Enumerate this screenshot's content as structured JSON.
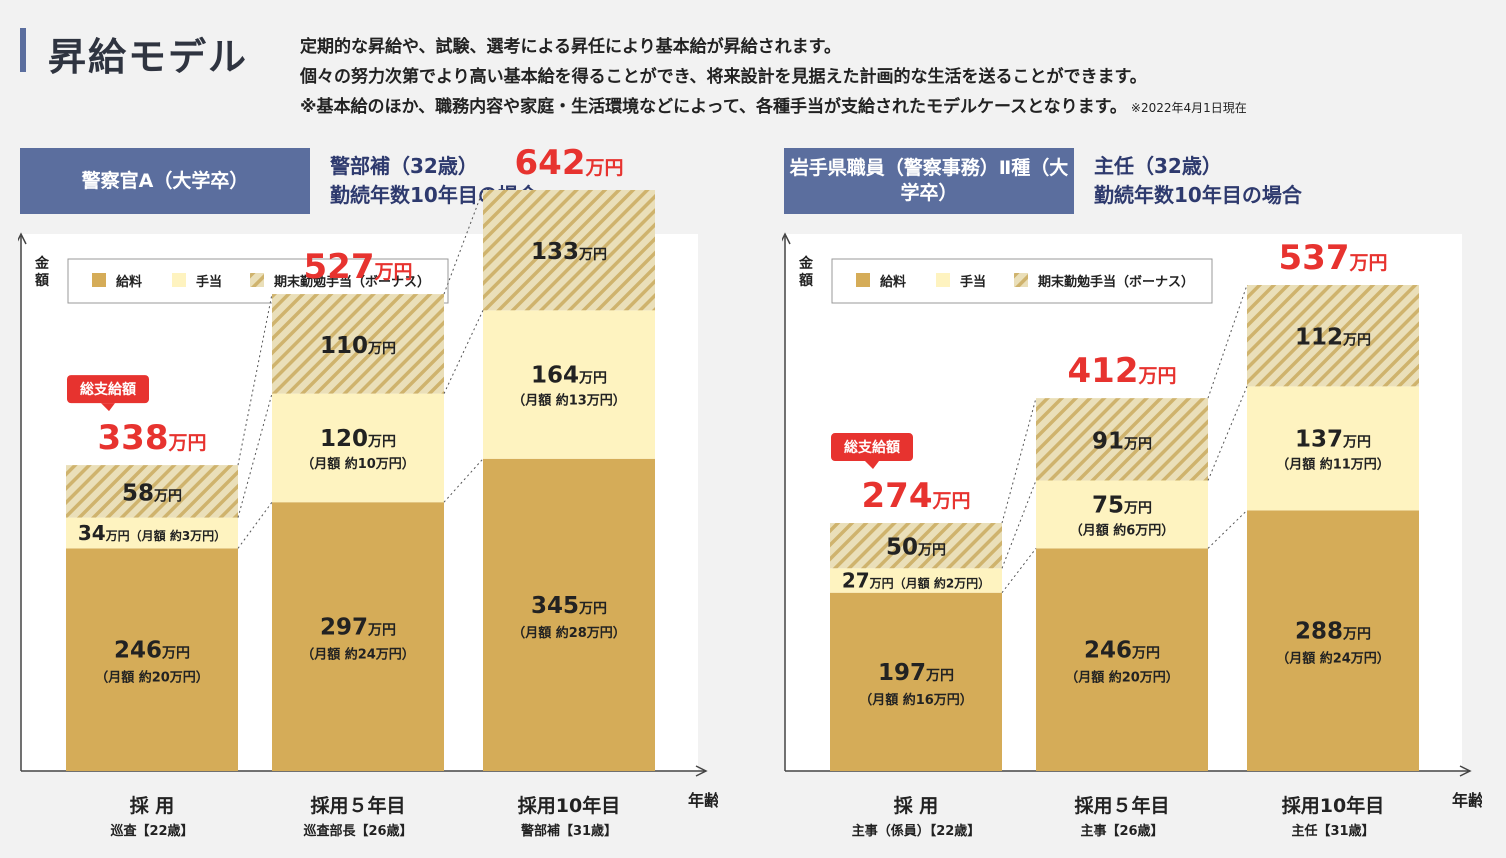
{
  "header": {
    "title": "昇給モデル",
    "intro_lines": [
      "定期的な昇給や、試験、選考による昇任により基本給が昇給されます。",
      "個々の努力次第でより高い基本給を得ることができ、将来設計を見据えた計画的な生活を送ることができます。",
      "※基本給のほか、職務内容や家庭・生活環境などによって、各種手当が支給されたモデルケースとなります。"
    ],
    "date_note": "※2022年4月1日現在"
  },
  "colors": {
    "salary": "#d5ac58",
    "allowance": "#fef3c0",
    "bonus_base": "#eadfb9",
    "bonus_stripe": "#cfb36d",
    "total": "#e7332f",
    "label_bg": "#5b6e9e",
    "subhead": "#2e3a6e"
  },
  "chart_data": [
    {
      "type": "bar",
      "stacked": true,
      "label": "警察官A（大学卒）",
      "subtitle": [
        "警部補（32歳）",
        "勤続年数10年目の場合"
      ],
      "ylabel": "金額",
      "xlabel": "年齢",
      "unit": "万円",
      "legend": [
        "給料",
        "手当",
        "期末勤勉手当（ボーナス）"
      ],
      "legend_position": "top-left",
      "total_badge": "総支給額",
      "ylim": [
        0,
        700
      ],
      "categories": [
        {
          "main": "採 用",
          "sub": "巡査【22歳】"
        },
        {
          "main": "採用５年目",
          "sub": "巡査部長【26歳】"
        },
        {
          "main": "採用10年目",
          "sub": "警部補【31歳】"
        }
      ],
      "series": [
        {
          "name": "給料",
          "values": [
            246,
            297,
            345
          ],
          "monthly": [
            20,
            24,
            28
          ]
        },
        {
          "name": "手当",
          "values": [
            34,
            120,
            164
          ],
          "monthly": [
            3,
            10,
            13
          ]
        },
        {
          "name": "期末勤勉手当（ボーナス）",
          "values": [
            58,
            110,
            133
          ]
        }
      ],
      "totals": [
        338,
        527,
        642
      ]
    },
    {
      "type": "bar",
      "stacked": true,
      "label": "岩手県職員（警察事務）Ⅱ種（大学卒）",
      "subtitle": [
        "主任（32歳）",
        "勤続年数10年目の場合"
      ],
      "ylabel": "金額",
      "xlabel": "年齢",
      "unit": "万円",
      "legend": [
        "給料",
        "手当",
        "期末勤勉手当（ボーナス）"
      ],
      "legend_position": "top-left",
      "total_badge": "総支給額",
      "ylim": [
        0,
        700
      ],
      "categories": [
        {
          "main": "採 用",
          "sub": "主事（係員）【22歳】"
        },
        {
          "main": "採用５年目",
          "sub": "主事【26歳】"
        },
        {
          "main": "採用10年目",
          "sub": "主任【31歳】"
        }
      ],
      "series": [
        {
          "name": "給料",
          "values": [
            197,
            246,
            288
          ],
          "monthly": [
            16,
            20,
            24
          ]
        },
        {
          "name": "手当",
          "values": [
            27,
            75,
            137
          ],
          "monthly": [
            2,
            6,
            11
          ]
        },
        {
          "name": "期末勤勉手当（ボーナス）",
          "values": [
            50,
            91,
            112
          ]
        }
      ],
      "totals": [
        274,
        412,
        537
      ]
    }
  ],
  "labels": {
    "monthly_prefix": "（月額 約",
    "monthly_suffix": "万円）"
  }
}
